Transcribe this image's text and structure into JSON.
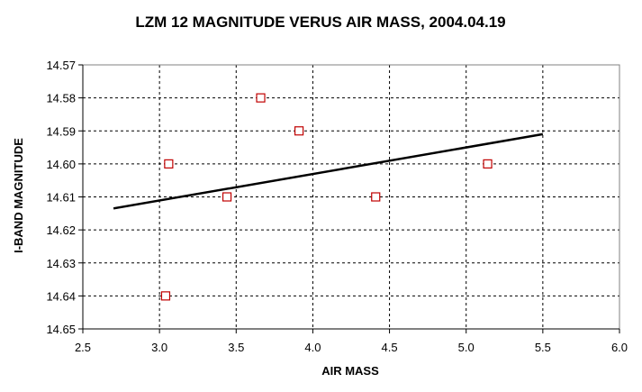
{
  "chart_data": {
    "type": "scatter",
    "title": "LZM 12 MAGNITUDE VERUS AIR MASS, 2004.04.19",
    "xlabel": "AIR MASS",
    "ylabel": "I-BAND MAGNITUDE",
    "xlim": [
      2.5,
      6.0
    ],
    "ylim": [
      14.57,
      14.65
    ],
    "y_reversed": true,
    "grid": true,
    "legend": "none",
    "x_ticks": [
      "2.5",
      "3.0",
      "3.5",
      "4.0",
      "4.5",
      "5.0",
      "5.5",
      "6.0"
    ],
    "y_ticks": [
      "14.57",
      "14.58",
      "14.59",
      "14.60",
      "14.61",
      "14.62",
      "14.63",
      "14.64",
      "14.65"
    ],
    "x_tick_values": [
      2.5,
      3.0,
      3.5,
      4.0,
      4.5,
      5.0,
      5.5,
      6.0
    ],
    "y_tick_values": [
      14.57,
      14.58,
      14.59,
      14.6,
      14.61,
      14.62,
      14.63,
      14.64,
      14.65
    ],
    "points": [
      {
        "x": 3.04,
        "y": 14.64
      },
      {
        "x": 3.06,
        "y": 14.6
      },
      {
        "x": 3.44,
        "y": 14.61
      },
      {
        "x": 3.66,
        "y": 14.58
      },
      {
        "x": 3.91,
        "y": 14.59
      },
      {
        "x": 4.41,
        "y": 14.61
      },
      {
        "x": 5.14,
        "y": 14.6
      }
    ],
    "trendline": {
      "x": [
        2.7,
        5.5
      ],
      "y": [
        14.6135,
        14.591
      ]
    },
    "marker_color": "#c00000",
    "trendline_color": "#000000"
  }
}
